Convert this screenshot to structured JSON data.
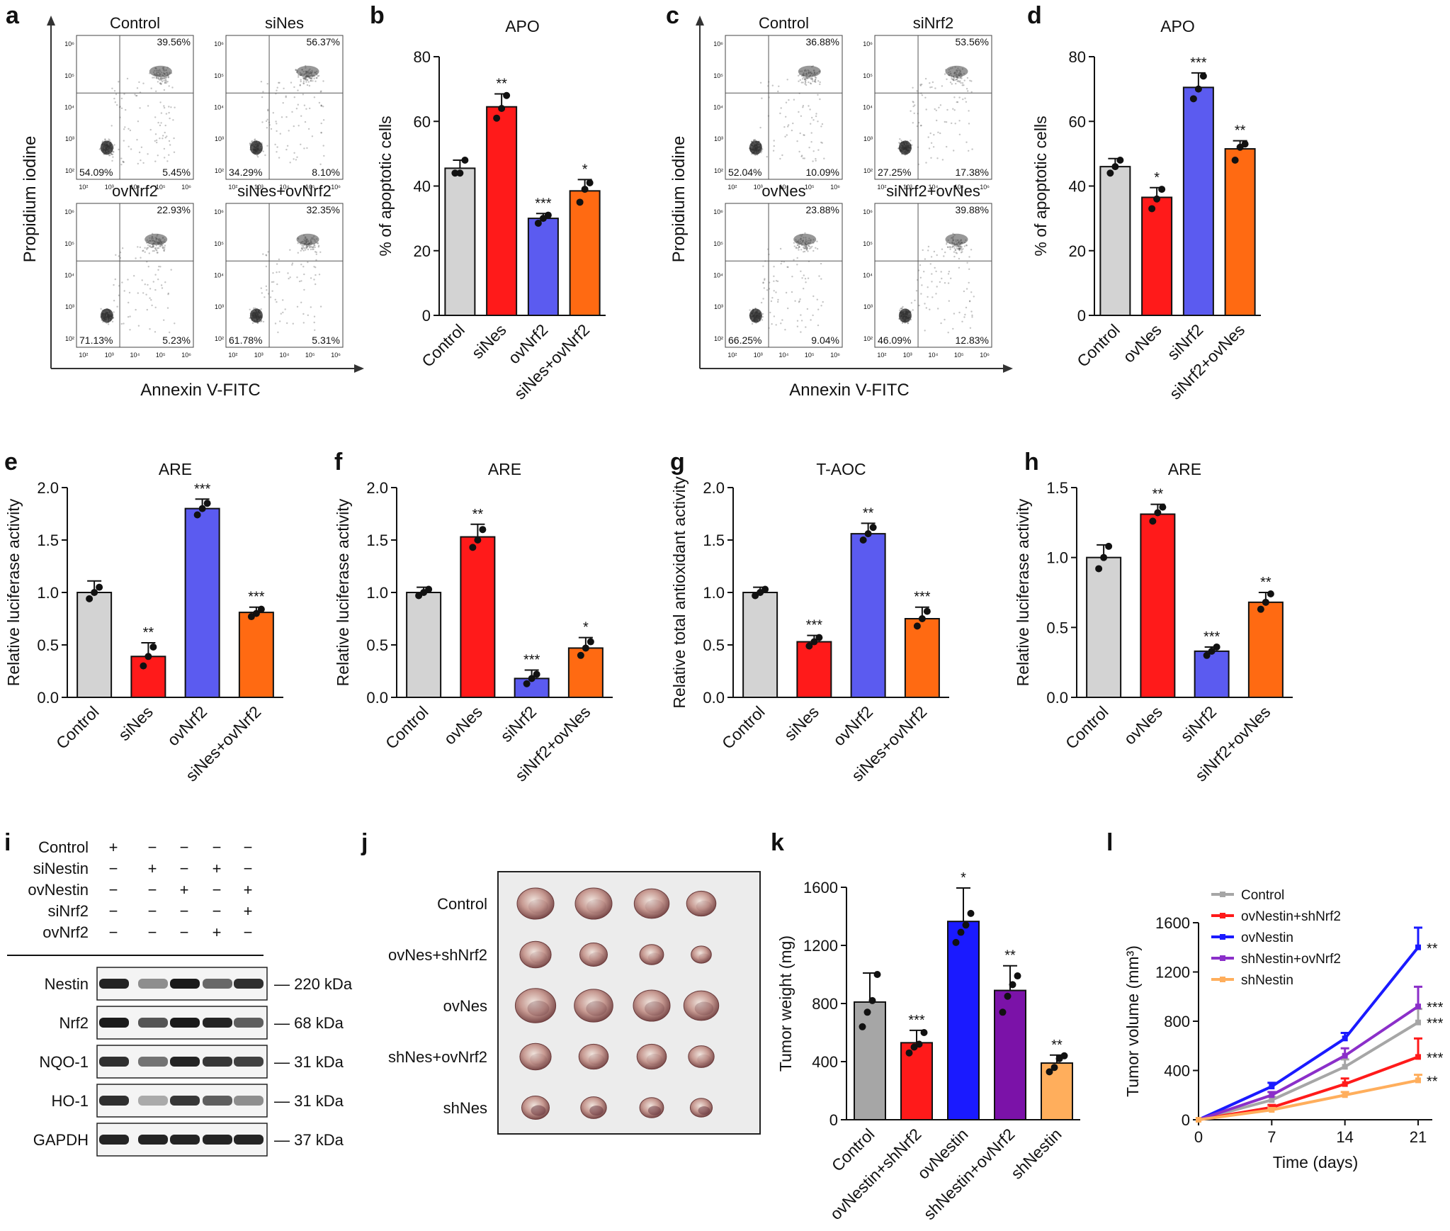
{
  "colors": {
    "gray": "#d3d3d3",
    "red": "#ff1a1a",
    "blue": "#5b5bf0",
    "orange": "#ff6a12",
    "k_gray": "#a6a6a6",
    "k_red": "#ff1a1a",
    "k_blue": "#1a1aff",
    "k_purple": "#7b12a8",
    "k_orange": "#ffae5c",
    "l_purple": "#8b2fc9"
  },
  "panel_labels": {
    "a": "a",
    "b": "b",
    "c": "c",
    "d": "d",
    "e": "e",
    "f": "f",
    "g": "g",
    "h": "h",
    "i": "i",
    "j": "j",
    "k": "k",
    "l": "l"
  },
  "flow_a": {
    "xlabel": "Annexin V-FITC",
    "ylabel": "Propidium iodine",
    "tick_labels": [
      "10²",
      "10³",
      "10⁴",
      "10⁵",
      "10⁶"
    ],
    "plots": [
      {
        "title": "Control",
        "ur": "39.56%",
        "ll": "54.09%",
        "lr": "5.45%"
      },
      {
        "title": "siNes",
        "ur": "56.37%",
        "ll": "34.29%",
        "lr": "8.10%"
      },
      {
        "title": "ovNrf2",
        "ur": "22.93%",
        "ll": "71.13%",
        "lr": "5.23%"
      },
      {
        "title": "siNes+ovNrf2",
        "ur": "32.35%",
        "ll": "61.78%",
        "lr": "5.31%"
      }
    ]
  },
  "flow_c": {
    "xlabel": "Annexin V-FITC",
    "ylabel": "Propidium iodine",
    "tick_labels": [
      "10²",
      "10³",
      "10⁴",
      "10⁵",
      "10⁶"
    ],
    "plots": [
      {
        "title": "Control",
        "ur": "36.88%",
        "ll": "52.04%",
        "lr": "10.09%"
      },
      {
        "title": "siNrf2",
        "ur": "53.56%",
        "ll": "27.25%",
        "lr": "17.38%"
      },
      {
        "title": "ovNes",
        "ur": "23.88%",
        "ll": "66.25%",
        "lr": "9.04%"
      },
      {
        "title": "siNrf2+ovNes",
        "ur": "39.88%",
        "ll": "46.09%",
        "lr": "12.83%"
      }
    ]
  },
  "chart_data": [
    {
      "id": "b",
      "type": "bar",
      "title": "APO",
      "ylabel": "% of apoptotic cells",
      "ylim": [
        0,
        80
      ],
      "yticks": [
        0,
        20,
        40,
        60,
        80
      ],
      "categories": [
        "Control",
        "siNes",
        "ovNrf2",
        "siNes+ovNrf2"
      ],
      "values": [
        45.5,
        64.5,
        30,
        38.5
      ],
      "errors": [
        2.5,
        4,
        1.5,
        3.5
      ],
      "points": [
        [
          44,
          44,
          48
        ],
        [
          61,
          64,
          68
        ],
        [
          28.5,
          30,
          31
        ],
        [
          35,
          39,
          41
        ]
      ],
      "sig": [
        "",
        "**",
        "***",
        "*"
      ]
    },
    {
      "id": "d",
      "type": "bar",
      "title": "APO",
      "ylabel": "% of apoptotic cells",
      "ylim": [
        0,
        80
      ],
      "yticks": [
        0,
        20,
        40,
        60,
        80
      ],
      "categories": [
        "Control",
        "ovNes",
        "siNrf2",
        "siNrf2+ovNes"
      ],
      "values": [
        46,
        36.5,
        70.5,
        51.5
      ],
      "errors": [
        2.5,
        3,
        4.5,
        2.5
      ],
      "points": [
        [
          44,
          46,
          48
        ],
        [
          33,
          36,
          39
        ],
        [
          67,
          70,
          74
        ],
        [
          48,
          52,
          53
        ]
      ],
      "sig": [
        "",
        "*",
        "***",
        "**"
      ]
    },
    {
      "id": "e",
      "type": "bar",
      "title": "ARE",
      "ylabel": "Relative luciferase activity",
      "ylim": [
        0,
        2
      ],
      "yticks": [
        "0.0",
        "0.5",
        "1.0",
        "1.5",
        "2.0"
      ],
      "categories": [
        "Control",
        "siNes",
        "ovNrf2",
        "siNes+ovNrf2"
      ],
      "values": [
        1.0,
        0.39,
        1.8,
        0.81
      ],
      "errors": [
        0.11,
        0.13,
        0.09,
        0.05
      ],
      "points": [
        [
          0.94,
          1.0,
          1.05
        ],
        [
          0.3,
          0.39,
          0.48
        ],
        [
          1.74,
          1.8,
          1.85
        ],
        [
          0.77,
          0.8,
          0.84
        ]
      ],
      "sig": [
        "",
        "**",
        "***",
        "***"
      ]
    },
    {
      "id": "f",
      "type": "bar",
      "title": "ARE",
      "ylabel": "Relative luciferase activity",
      "ylim": [
        0,
        2
      ],
      "yticks": [
        "0.0",
        "0.5",
        "1.0",
        "1.5",
        "2.0"
      ],
      "categories": [
        "Control",
        "ovNes",
        "siNrf2",
        "siNrf2+ovNes"
      ],
      "values": [
        1.0,
        1.53,
        0.18,
        0.47
      ],
      "errors": [
        0.05,
        0.12,
        0.08,
        0.1
      ],
      "points": [
        [
          0.97,
          1.0,
          1.03
        ],
        [
          1.43,
          1.5,
          1.6
        ],
        [
          0.13,
          0.18,
          0.22
        ],
        [
          0.4,
          0.47,
          0.53
        ]
      ],
      "sig": [
        "",
        "**",
        "***",
        "*"
      ]
    },
    {
      "id": "g",
      "type": "bar",
      "title": "T-AOC",
      "ylabel": "Relative total antioxidant activity",
      "ylim": [
        0,
        2
      ],
      "yticks": [
        "0.0",
        "0.5",
        "1.0",
        "1.5",
        "2.0"
      ],
      "categories": [
        "Control",
        "siNes",
        "ovNrf2",
        "siNes+ovNrf2"
      ],
      "values": [
        1.0,
        0.53,
        1.56,
        0.75
      ],
      "errors": [
        0.05,
        0.06,
        0.1,
        0.11
      ],
      "points": [
        [
          0.97,
          1.0,
          1.03
        ],
        [
          0.49,
          0.53,
          0.57
        ],
        [
          1.5,
          1.56,
          1.62
        ],
        [
          0.68,
          0.75,
          0.82
        ]
      ],
      "sig": [
        "",
        "***",
        "**",
        "***"
      ]
    },
    {
      "id": "h",
      "type": "bar",
      "title": "ARE",
      "ylabel": "Relative luciferase activity",
      "ylim": [
        0,
        1.5
      ],
      "yticks": [
        "0.0",
        "0.5",
        "1.0",
        "1.5"
      ],
      "categories": [
        "Control",
        "ovNes",
        "siNrf2",
        "siNrf2+ovNes"
      ],
      "values": [
        1.0,
        1.31,
        0.33,
        0.68
      ],
      "errors": [
        0.09,
        0.07,
        0.03,
        0.07
      ],
      "points": [
        [
          0.92,
          1.0,
          1.08
        ],
        [
          1.26,
          1.32,
          1.36
        ],
        [
          0.3,
          0.33,
          0.36
        ],
        [
          0.63,
          0.68,
          0.74
        ]
      ],
      "sig": [
        "",
        "**",
        "***",
        "**"
      ]
    },
    {
      "id": "k",
      "type": "bar",
      "title": "",
      "ylabel": "Tumor weight (mg)",
      "ylim": [
        0,
        1600
      ],
      "yticks": [
        0,
        400,
        800,
        1200,
        1600
      ],
      "categories": [
        "Control",
        "ovNestin+shNrf2",
        "ovNestin",
        "shNestin+ovNrf2",
        "shNestin"
      ],
      "values": [
        810,
        530,
        1365,
        890,
        390
      ],
      "errors": [
        200,
        85,
        230,
        170,
        55
      ],
      "points": [
        [
          640,
          740,
          820,
          1000
        ],
        [
          460,
          500,
          520,
          600
        ],
        [
          1220,
          1290,
          1340,
          1420
        ],
        [
          740,
          850,
          930,
          990
        ],
        [
          330,
          360,
          420,
          440
        ]
      ],
      "sig": [
        "",
        "***",
        "*",
        "**",
        "**"
      ]
    },
    {
      "id": "l",
      "type": "line",
      "title": "",
      "xlabel": "Time (days)",
      "ylabel": "Tumor volume (mm³)",
      "x": [
        0,
        7,
        14,
        21
      ],
      "ylim": [
        0,
        1600
      ],
      "yticks": [
        0,
        400,
        800,
        1200,
        1600
      ],
      "series": [
        {
          "name": "Control",
          "values": [
            0,
            160,
            430,
            790
          ],
          "errors": [
            0,
            25,
            60,
            110
          ],
          "sig": "***"
        },
        {
          "name": "ovNestin+shNrf2",
          "values": [
            0,
            100,
            290,
            510
          ],
          "errors": [
            0,
            20,
            45,
            150
          ],
          "sig": "***"
        },
        {
          "name": "ovNestin",
          "values": [
            0,
            270,
            660,
            1400
          ],
          "errors": [
            0,
            30,
            45,
            160
          ],
          "sig": "**"
        },
        {
          "name": "shNestin+ovNrf2",
          "values": [
            0,
            200,
            520,
            920
          ],
          "errors": [
            0,
            25,
            60,
            160
          ],
          "sig": "***"
        },
        {
          "name": "shNestin",
          "values": [
            0,
            80,
            200,
            320
          ],
          "errors": [
            0,
            15,
            25,
            45
          ],
          "sig": "**"
        }
      ]
    }
  ],
  "western": {
    "conditions": [
      "Control",
      "siNestin",
      "ovNestin",
      "siNrf2",
      "ovNrf2"
    ],
    "signs": [
      [
        "+",
        "−",
        "−",
        "−",
        "−"
      ],
      [
        "−",
        "+",
        "−",
        "+",
        "−"
      ],
      [
        "−",
        "−",
        "+",
        "−",
        "+"
      ],
      [
        "−",
        "−",
        "−",
        "−",
        "+"
      ],
      [
        "−",
        "−",
        "−",
        "+",
        "−"
      ]
    ],
    "bands": [
      {
        "name": "Nestin",
        "size": "220 kDa",
        "intensity": [
          0.9,
          0.35,
          0.95,
          0.55,
          0.85
        ]
      },
      {
        "name": "Nrf2",
        "size": "68 kDa",
        "intensity": [
          0.95,
          0.65,
          0.95,
          0.9,
          0.6
        ]
      },
      {
        "name": "NQO-1",
        "size": "31 kDa",
        "intensity": [
          0.85,
          0.5,
          0.9,
          0.8,
          0.75
        ]
      },
      {
        "name": "HO-1",
        "size": "31 kDa",
        "intensity": [
          0.85,
          0.2,
          0.8,
          0.6,
          0.35
        ]
      },
      {
        "name": "GAPDH",
        "size": "37 kDa",
        "intensity": [
          0.9,
          0.9,
          0.9,
          0.9,
          0.9
        ]
      }
    ]
  },
  "tumors": {
    "rows": [
      "Control",
      "ovNes+shNrf2",
      "ovNes",
      "shNes+ovNrf2",
      "shNes"
    ],
    "scale": [
      [
        1,
        1,
        0.95,
        0.8
      ],
      [
        0.85,
        0.75,
        0.65,
        0.55
      ],
      [
        1.1,
        1.05,
        1,
        0.95
      ],
      [
        0.85,
        0.8,
        0.8,
        0.7
      ],
      [
        0.75,
        0.7,
        0.65,
        0.6
      ]
    ]
  }
}
